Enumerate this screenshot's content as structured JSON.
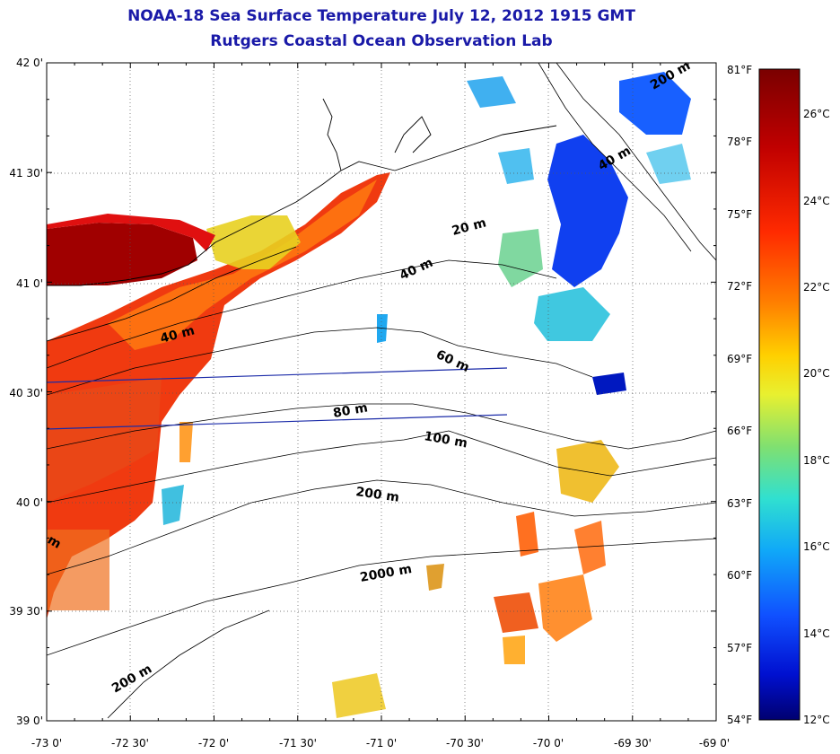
{
  "title": "NOAA-18 Sea Surface Temperature July 12, 2012 1915 GMT",
  "subtitle": "Rutgers Coastal Ocean Observation Lab",
  "lat_labels": [
    "42 0'",
    "41 30'",
    "41 0'",
    "40 30'",
    "40 0'",
    "39 30'",
    "39 0'"
  ],
  "lon_labels": [
    "-73 0'",
    "-72 30'",
    "-72 0'",
    "-71 30'",
    "-71 0'",
    "-70 30'",
    "-70 0'",
    "-69 30'",
    "-69 0'"
  ],
  "colorbar": {
    "fahrenheit": [
      "81°F",
      "78°F",
      "75°F",
      "72°F",
      "69°F",
      "66°F",
      "63°F",
      "60°F",
      "57°F",
      "54°F"
    ],
    "celsius": [
      "26°C",
      "24°C",
      "22°C",
      "20°C",
      "18°C",
      "16°C",
      "14°C",
      "12°C"
    ],
    "colors": [
      "#7a0000",
      "#c00000",
      "#ff2000",
      "#ff6a00",
      "#ffb000",
      "#ffe000",
      "#c8f040",
      "#70e070",
      "#30d8c0",
      "#10b8f0",
      "#1070ff",
      "#0020e0",
      "#000080"
    ]
  },
  "contour_labels": [
    "20 m",
    "40 m",
    "40 m",
    "40 m",
    "60 m",
    "80 m",
    "100 m",
    "200 m",
    "2000 m",
    "200 m",
    "200 m",
    "m"
  ]
}
